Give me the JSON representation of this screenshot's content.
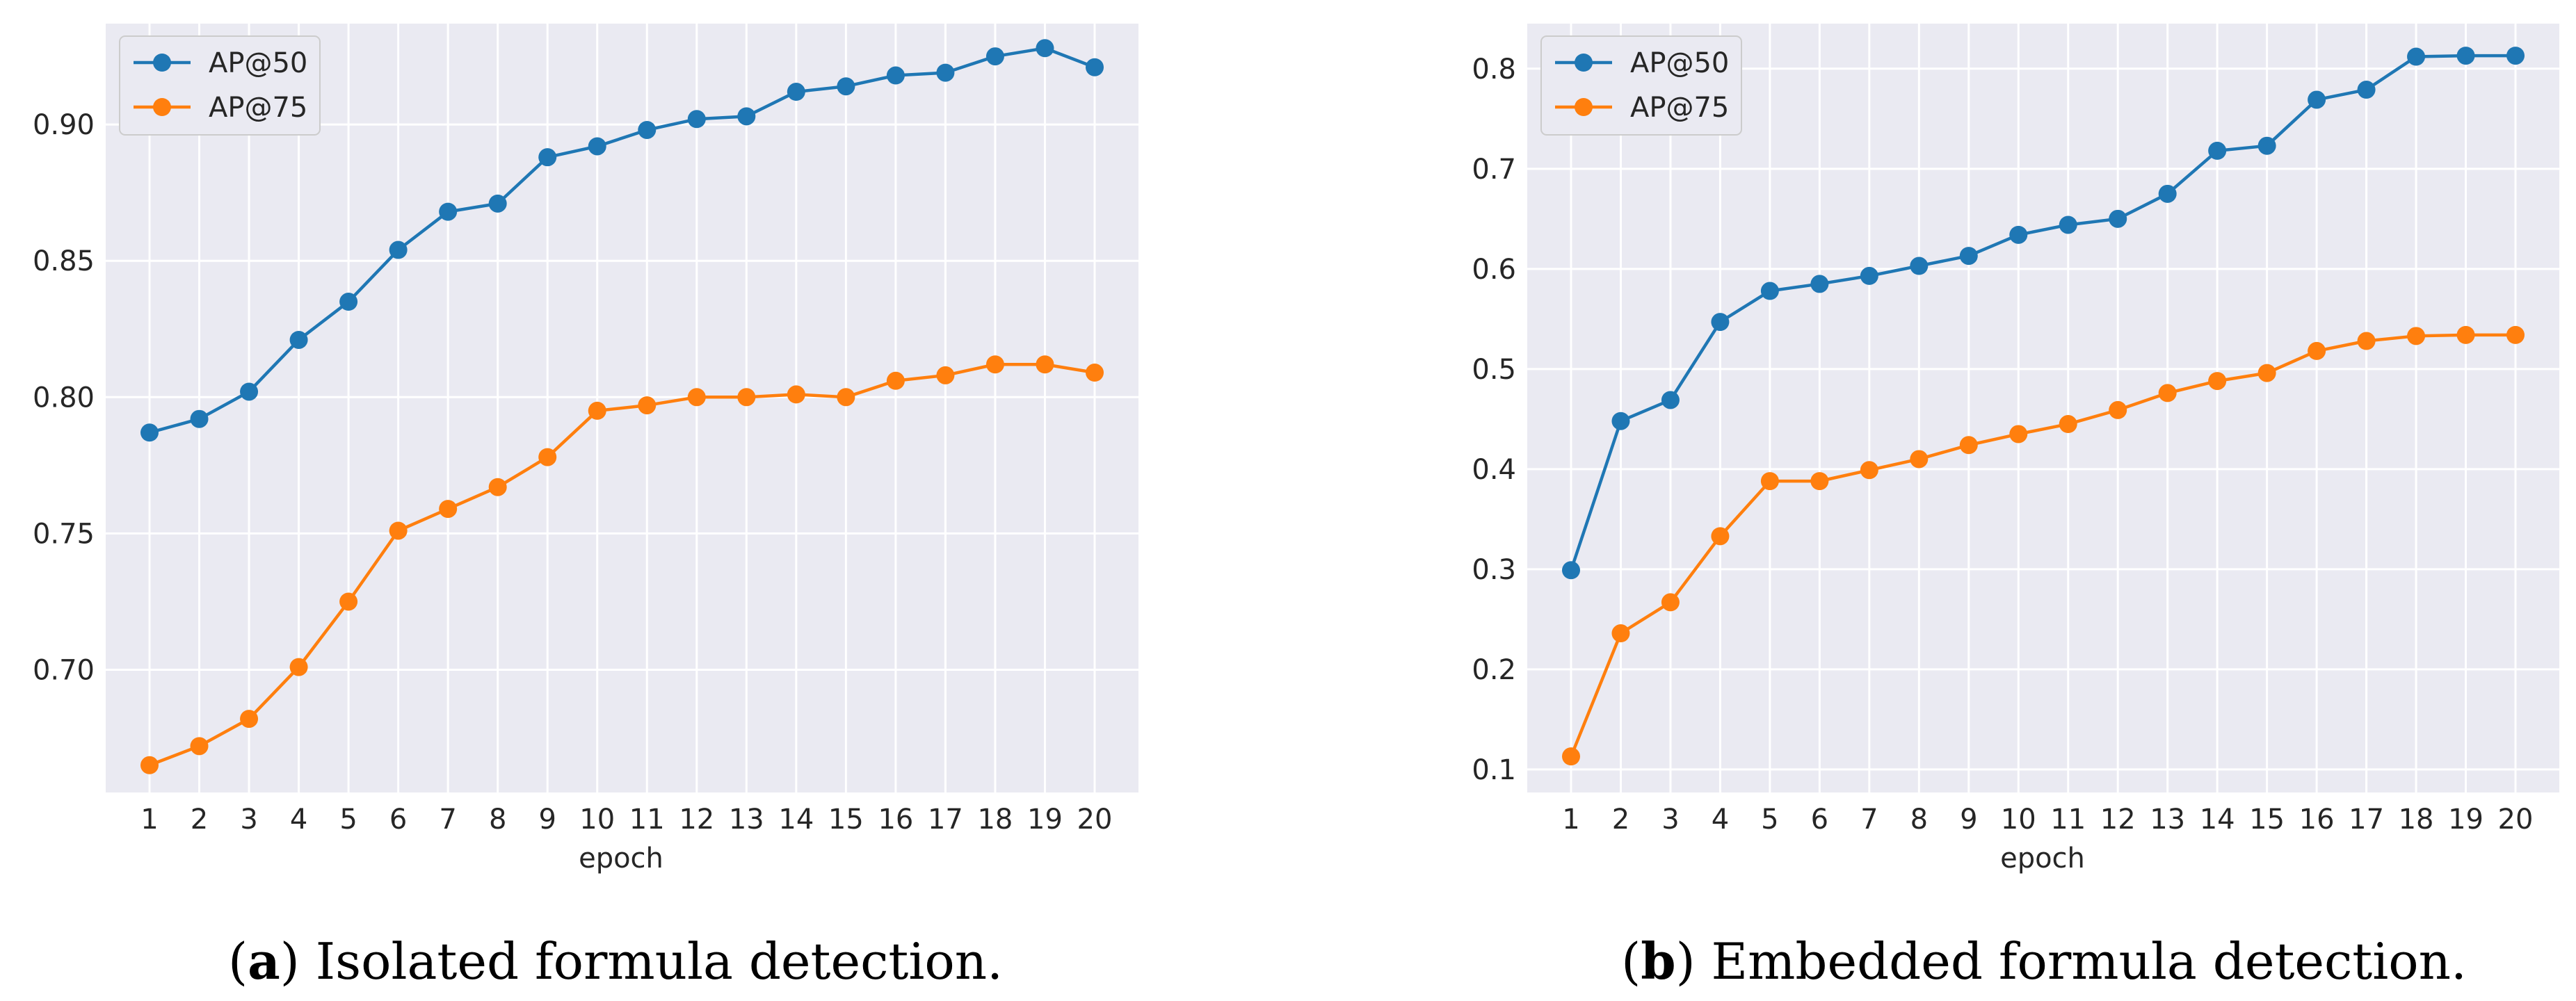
{
  "chart_data": [
    {
      "type": "line",
      "title": "",
      "xlabel": "epoch",
      "ylabel": "",
      "x": [
        1,
        2,
        3,
        4,
        5,
        6,
        7,
        8,
        9,
        10,
        11,
        12,
        13,
        14,
        15,
        16,
        17,
        18,
        19,
        20
      ],
      "ylim": [
        0.655,
        0.937
      ],
      "yticks": [
        0.7,
        0.75,
        0.8,
        0.85,
        0.9
      ],
      "ytick_labels": [
        "0.70",
        "0.75",
        "0.80",
        "0.85",
        "0.90"
      ],
      "grid": true,
      "legend_position": "upper-left",
      "series": [
        {
          "name": "AP@50",
          "color": "#1f77b4",
          "values": [
            0.787,
            0.792,
            0.802,
            0.821,
            0.835,
            0.854,
            0.868,
            0.871,
            0.888,
            0.892,
            0.898,
            0.902,
            0.903,
            0.912,
            0.914,
            0.918,
            0.919,
            0.925,
            0.928,
            0.921
          ]
        },
        {
          "name": "AP@75",
          "color": "#ff7f0e",
          "values": [
            0.665,
            0.672,
            0.682,
            0.701,
            0.725,
            0.751,
            0.759,
            0.767,
            0.778,
            0.795,
            0.797,
            0.8,
            0.8,
            0.801,
            0.8,
            0.806,
            0.808,
            0.812,
            0.812,
            0.809
          ]
        }
      ],
      "caption": {
        "letter": "a",
        "text": " Isolated formula detection."
      }
    },
    {
      "type": "line",
      "title": "",
      "xlabel": "epoch",
      "ylabel": "",
      "x": [
        1,
        2,
        3,
        4,
        5,
        6,
        7,
        8,
        9,
        10,
        11,
        12,
        13,
        14,
        15,
        16,
        17,
        18,
        19,
        20
      ],
      "ylim": [
        0.077,
        0.845
      ],
      "yticks": [
        0.1,
        0.2,
        0.3,
        0.4,
        0.5,
        0.6,
        0.7,
        0.8
      ],
      "ytick_labels": [
        "0.1",
        "0.2",
        "0.3",
        "0.4",
        "0.5",
        "0.6",
        "0.7",
        "0.8"
      ],
      "grid": true,
      "legend_position": "upper-left",
      "series": [
        {
          "name": "AP@50",
          "color": "#1f77b4",
          "values": [
            0.299,
            0.448,
            0.469,
            0.547,
            0.578,
            0.585,
            0.593,
            0.603,
            0.613,
            0.634,
            0.644,
            0.65,
            0.675,
            0.718,
            0.723,
            0.769,
            0.779,
            0.812,
            0.813,
            0.813
          ]
        },
        {
          "name": "AP@75",
          "color": "#ff7f0e",
          "values": [
            0.113,
            0.236,
            0.267,
            0.333,
            0.388,
            0.388,
            0.399,
            0.41,
            0.424,
            0.435,
            0.445,
            0.459,
            0.476,
            0.488,
            0.496,
            0.518,
            0.528,
            0.533,
            0.534,
            0.534
          ]
        }
      ],
      "caption": {
        "letter": "b",
        "text": " Embedded formula detection."
      }
    }
  ]
}
